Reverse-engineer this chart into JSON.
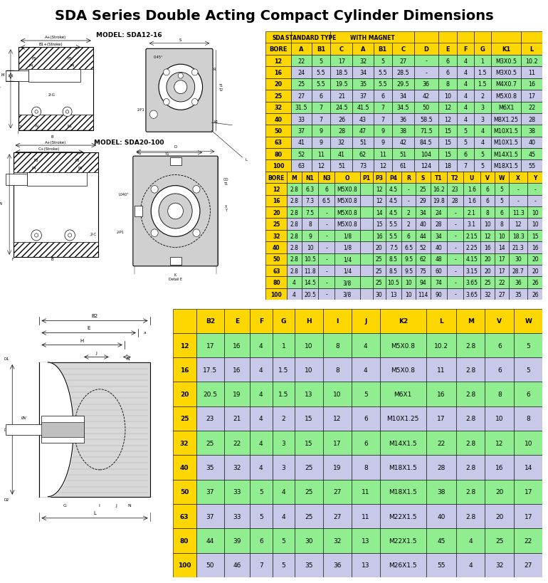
{
  "title": "SDA Series Double Acting Compact Cylinder Dimensions",
  "title_fontsize": 14,
  "table1_header_row2": [
    "BORE",
    "A",
    "B1",
    "C",
    "A",
    "B1",
    "C",
    "D",
    "E",
    "F",
    "G",
    "K1",
    "L"
  ],
  "table1_data": [
    [
      "12",
      "22",
      "5",
      "17",
      "32",
      "5",
      "27",
      "-",
      "6",
      "4",
      "1",
      "M3X0.5",
      "10.2"
    ],
    [
      "16",
      "24",
      "5.5",
      "18.5",
      "34",
      "5.5",
      "28.5",
      "-",
      "6",
      "4",
      "1.5",
      "M3X0.5",
      "11"
    ],
    [
      "20",
      "25",
      "5.5",
      "19.5",
      "35",
      "5.5",
      "29.5",
      "36",
      "8",
      "4",
      "1.5",
      "M4X0.7",
      "16"
    ],
    [
      "25",
      "27",
      "6",
      "21",
      "37",
      "6",
      "34",
      "42",
      "10",
      "4",
      "2",
      "M5X0.8",
      "17"
    ],
    [
      "32",
      "31.5",
      "7",
      "24.5",
      "41.5",
      "7",
      "34.5",
      "50",
      "12",
      "4",
      "3",
      "M6X1",
      "22"
    ],
    [
      "40",
      "33",
      "7",
      "26",
      "43",
      "7",
      "36",
      "58.5",
      "12",
      "4",
      "3",
      "M8X1.25",
      "28"
    ],
    [
      "50",
      "37",
      "9",
      "28",
      "47",
      "9",
      "38",
      "71.5",
      "15",
      "5",
      "4",
      "M10X1.5",
      "38"
    ],
    [
      "63",
      "41",
      "9",
      "32",
      "51",
      "9",
      "42",
      "84.5",
      "15",
      "5",
      "4",
      "M10X1.5",
      "40"
    ],
    [
      "80",
      "52",
      "11",
      "41",
      "62",
      "11",
      "51",
      "104",
      "15",
      "6",
      "5",
      "M14X1.5",
      "45"
    ],
    [
      "100",
      "63",
      "12",
      "51",
      "73",
      "12",
      "61",
      "124",
      "18",
      "7",
      "5",
      "M18X1.5",
      "55"
    ]
  ],
  "table2_header": [
    "BORE",
    "M",
    "N1",
    "N3",
    "O",
    "P1",
    "P3",
    "P4",
    "R",
    "S",
    "T1",
    "T2",
    "U",
    "V",
    "W",
    "X",
    "Y"
  ],
  "table2_data": [
    [
      "12",
      "2.8",
      "6.3",
      "6",
      "M5X0.8",
      "",
      "12",
      "4.5",
      "-",
      "25",
      "16.2",
      "23",
      "1.6",
      "6",
      "5",
      "-",
      "-"
    ],
    [
      "16",
      "2.8",
      "7.3",
      "6.5",
      "M5X0.8",
      "",
      "12",
      "4.5",
      "-",
      "29",
      "19.8",
      "28",
      "1.6",
      "6",
      "5",
      "-",
      "-"
    ],
    [
      "20",
      "2.8",
      "7.5",
      "-",
      "M5X0.8",
      "",
      "14",
      "4.5",
      "2",
      "34",
      "24",
      "-",
      "2.1",
      "8",
      "6",
      "11.3",
      "10"
    ],
    [
      "25",
      "2.8",
      "8",
      "-",
      "M5X0.8",
      "",
      "15",
      "5.5",
      "2",
      "40",
      "28",
      "-",
      "3.1",
      "10",
      "8",
      "12",
      "10"
    ],
    [
      "32",
      "2.8",
      "9",
      "-",
      "1/8",
      "",
      "16",
      "5.5",
      "6",
      "44",
      "34",
      "-",
      "2.15",
      "12",
      "10",
      "18.3",
      "15"
    ],
    [
      "40",
      "2.8",
      "10",
      "-",
      "1/8",
      "",
      "20",
      "7.5",
      "6.5",
      "52",
      "40",
      "-",
      "2.25",
      "16",
      "14",
      "21.3",
      "16"
    ],
    [
      "50",
      "2.8",
      "10.5",
      "-",
      "1/4",
      "",
      "25",
      "8.5",
      "9.5",
      "62",
      "48",
      "-",
      "4.15",
      "20",
      "17",
      "30",
      "20"
    ],
    [
      "63",
      "2.8",
      "11.8",
      "-",
      "1/4",
      "",
      "25",
      "8.5",
      "9.5",
      "75",
      "60",
      "-",
      "3.15",
      "20",
      "17",
      "28.7",
      "20"
    ],
    [
      "80",
      "4",
      "14.5",
      "-",
      "3/8",
      "",
      "25",
      "10.5",
      "10",
      "94",
      "74",
      "-",
      "3.65",
      "25",
      "22",
      "36",
      "26"
    ],
    [
      "100",
      "4",
      "20.5",
      "-",
      "3/8",
      "",
      "30",
      "13",
      "10",
      "114",
      "90",
      "-",
      "3.65",
      "32",
      "27",
      "35",
      "26"
    ]
  ],
  "table3_header": [
    "",
    "B2",
    "E",
    "F",
    "G",
    "H",
    "I",
    "J",
    "K2",
    "L",
    "M",
    "V",
    "W"
  ],
  "table3_data": [
    [
      "12",
      "17",
      "16",
      "4",
      "1",
      "10",
      "8",
      "4",
      "M5X0.8",
      "10.2",
      "2.8",
      "6",
      "5"
    ],
    [
      "16",
      "17.5",
      "16",
      "4",
      "1.5",
      "10",
      "8",
      "4",
      "M5X0.8",
      "11",
      "2.8",
      "6",
      "5"
    ],
    [
      "20",
      "20.5",
      "19",
      "4",
      "1.5",
      "13",
      "10",
      "5",
      "M6X1",
      "16",
      "2.8",
      "8",
      "6"
    ],
    [
      "25",
      "23",
      "21",
      "4",
      "2",
      "15",
      "12",
      "6",
      "M10X1.25",
      "17",
      "2.8",
      "10",
      "8"
    ],
    [
      "32",
      "25",
      "22",
      "4",
      "3",
      "15",
      "17",
      "6",
      "M14X1.5",
      "22",
      "2.8",
      "12",
      "10"
    ],
    [
      "40",
      "35",
      "32",
      "4",
      "3",
      "25",
      "19",
      "8",
      "M18X1.5",
      "28",
      "2.8",
      "16",
      "14"
    ],
    [
      "50",
      "37",
      "33",
      "5",
      "4",
      "25",
      "27",
      "11",
      "M18X1.5",
      "38",
      "2.8",
      "20",
      "17"
    ],
    [
      "63",
      "37",
      "33",
      "5",
      "4",
      "25",
      "27",
      "11",
      "M22X1.5",
      "40",
      "2.8",
      "20",
      "17"
    ],
    [
      "80",
      "44",
      "39",
      "6",
      "5",
      "30",
      "32",
      "13",
      "M22X1.5",
      "45",
      "4",
      "25",
      "22"
    ],
    [
      "100",
      "50",
      "46",
      "7",
      "5",
      "35",
      "36",
      "13",
      "M26X1.5",
      "55",
      "4",
      "32",
      "27"
    ]
  ],
  "color_yellow": "#FFD700",
  "color_green": "#90EE90",
  "color_purple": "#C8C8E8",
  "color_white": "#FFFFFF",
  "color_black": "#000000",
  "color_gray_light": "#D8D8D8",
  "color_gray_mid": "#C0C0C0",
  "color_gray_dark": "#A0A0A0"
}
